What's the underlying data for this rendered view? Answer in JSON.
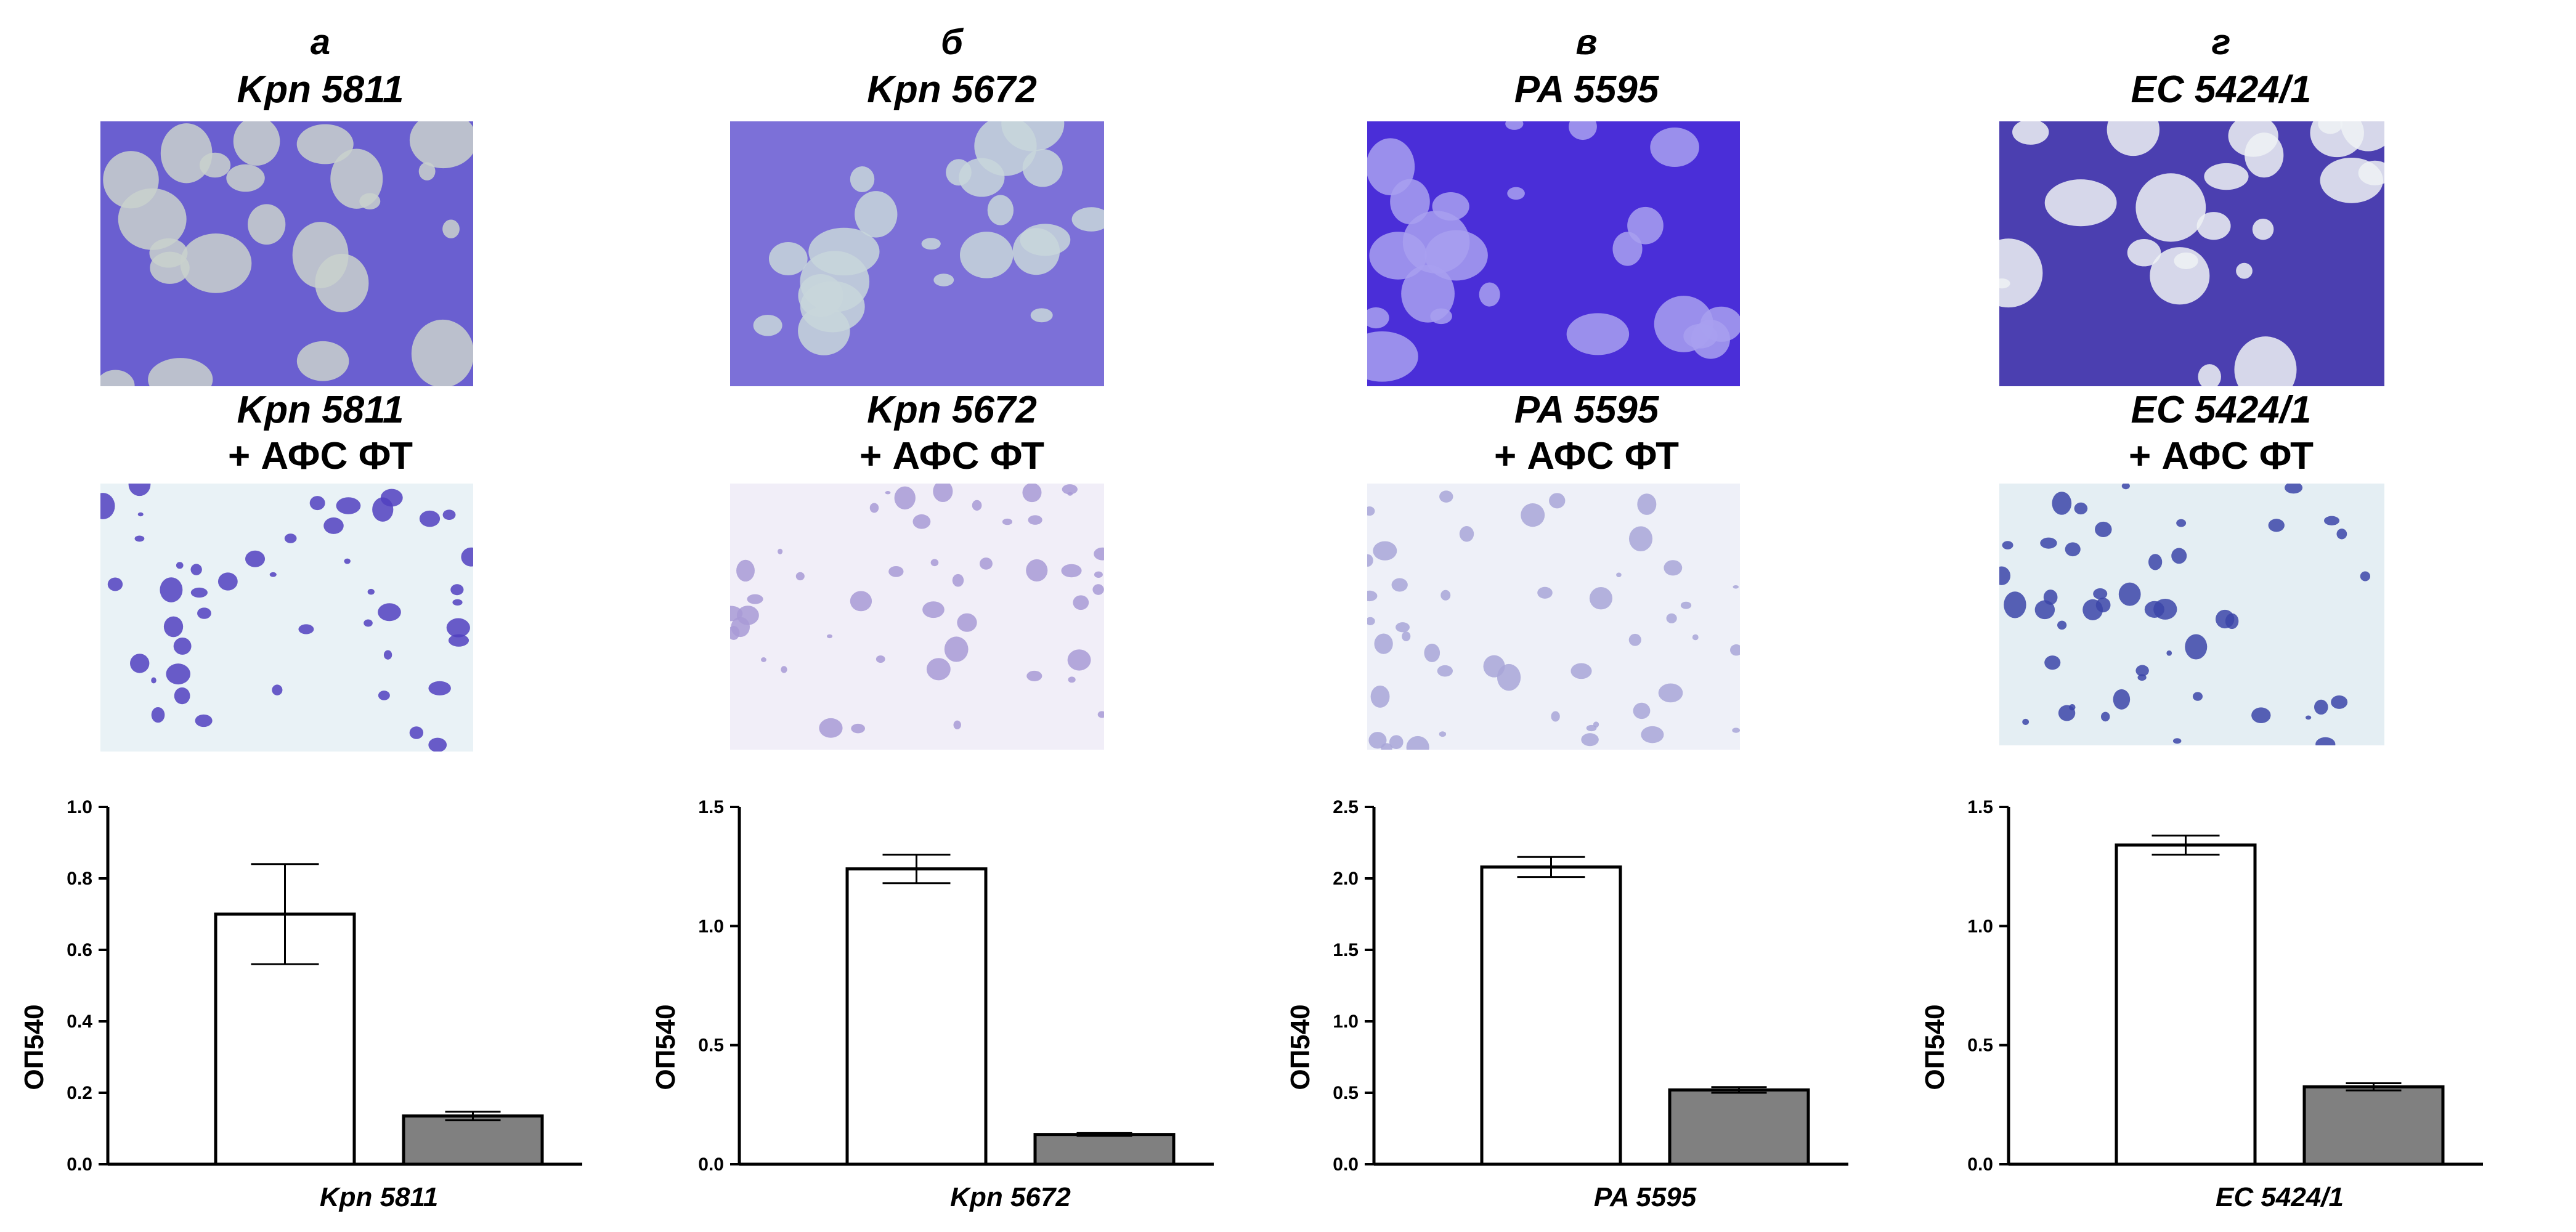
{
  "panels": [
    {
      "letter": "а",
      "strain": "Kpn 5811",
      "treatment": "+ АФС ФТ",
      "colors": {
        "top_bg": "#6a5fd0",
        "top_spot": "#c9d1cd",
        "bottom_bg": "#e9f2f6",
        "bottom_spot": "#5141c0"
      }
    },
    {
      "letter": "б",
      "strain": "Kpn 5672",
      "treatment": "+ АФС ФТ",
      "colors": {
        "top_bg": "#7c70d8",
        "top_spot": "#c8d6db",
        "bottom_bg": "#f1eef8",
        "bottom_spot": "#a89ad6"
      }
    },
    {
      "letter": "в",
      "strain": "PA 5595",
      "treatment": "+ АФС ФТ",
      "colors": {
        "top_bg": "#4a2ed8",
        "top_spot": "#a8a0f0",
        "bottom_bg": "#eef0f8",
        "bottom_spot": "#a8a6d8"
      }
    },
    {
      "letter": "г",
      "strain": "EC 5424/1",
      "treatment": "+ АФС ФТ",
      "colors": {
        "top_bg": "#4b3fb0",
        "top_spot": "#eef2f4",
        "bottom_bg": "#e4eef3",
        "bottom_spot": "#3c45a8"
      }
    }
  ],
  "chart_data": [
    {
      "type": "bar",
      "categories": [
        "Kpn 5811"
      ],
      "xlabel": "Kpn 5811",
      "ylabel": "ОП540",
      "ylim": [
        0,
        1.0
      ],
      "yticks": [
        "0.0",
        "0.2",
        "0.4",
        "0.6",
        "0.8",
        "1.0"
      ],
      "series": [
        {
          "values": [
            0.7
          ],
          "error": [
            0.14
          ]
        },
        {
          "values": [
            0.135
          ],
          "error": [
            0.012
          ]
        }
      ],
      "colors": [
        "#ffffff",
        "#808080"
      ]
    },
    {
      "type": "bar",
      "categories": [
        "Kpn 5672"
      ],
      "xlabel": "Kpn 5672",
      "ylabel": "ОП540",
      "ylim": [
        0,
        1.5
      ],
      "yticks": [
        "0.0",
        "0.5",
        "1.0",
        "1.5"
      ],
      "series": [
        {
          "values": [
            1.24
          ],
          "error": [
            0.06
          ]
        },
        {
          "values": [
            0.125
          ],
          "error": [
            0.006
          ]
        }
      ],
      "colors": [
        "#ffffff",
        "#808080"
      ]
    },
    {
      "type": "bar",
      "categories": [
        "PA 5595"
      ],
      "xlabel": "PA 5595",
      "ylabel": "ОП540",
      "ylim": [
        0,
        2.5
      ],
      "yticks": [
        "0.0",
        "0.5",
        "1.0",
        "1.5",
        "2.0",
        "2.5"
      ],
      "series": [
        {
          "values": [
            2.08
          ],
          "error": [
            0.07
          ]
        },
        {
          "values": [
            0.52
          ],
          "error": [
            0.02
          ]
        }
      ],
      "colors": [
        "#ffffff",
        "#808080"
      ]
    },
    {
      "type": "bar",
      "categories": [
        "EC 5424/1"
      ],
      "xlabel": "EC 5424/1",
      "ylabel": "ОП540",
      "ylim": [
        0,
        1.5
      ],
      "yticks": [
        "0.0",
        "0.5",
        "1.0",
        "1.5"
      ],
      "series": [
        {
          "values": [
            1.34
          ],
          "error": [
            0.04
          ]
        },
        {
          "values": [
            0.325
          ],
          "error": [
            0.015
          ]
        }
      ],
      "colors": [
        "#ffffff",
        "#808080"
      ]
    }
  ]
}
